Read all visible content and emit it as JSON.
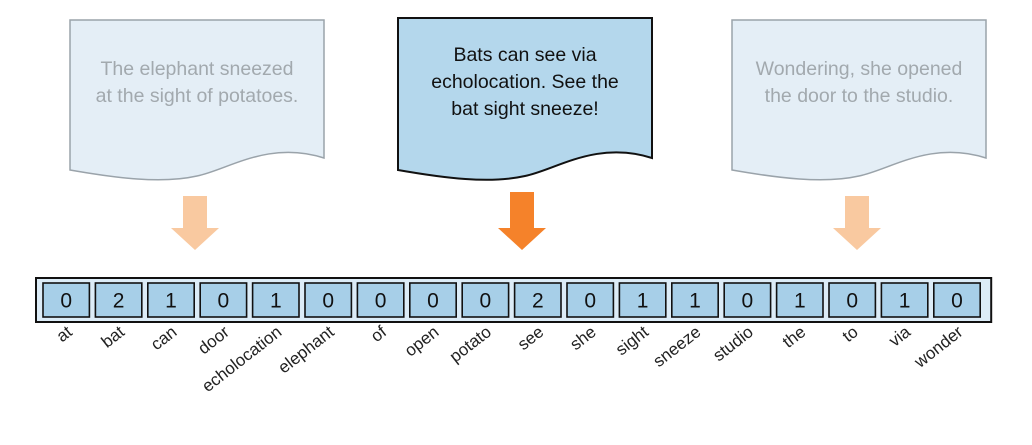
{
  "documents": [
    {
      "lines": [
        "The elephant sneezed",
        "at the sight of potatoes."
      ],
      "highlighted": false
    },
    {
      "lines": [
        "Bats can see via",
        "echolocation. See the",
        "bat sight sneeze!"
      ],
      "highlighted": true
    },
    {
      "lines": [
        "Wondering, she opened",
        "the door to the studio."
      ],
      "highlighted": false
    }
  ],
  "vector": {
    "values": [
      "0",
      "2",
      "1",
      "0",
      "1",
      "0",
      "0",
      "0",
      "0",
      "2",
      "0",
      "1",
      "1",
      "0",
      "1",
      "0",
      "1",
      "0"
    ],
    "vocabulary": [
      "at",
      "bat",
      "can",
      "door",
      "echolocation",
      "elephant",
      "of",
      "open",
      "potato",
      "see",
      "she",
      "sight",
      "sneeze",
      "studio",
      "the",
      "to",
      "via",
      "wonder"
    ]
  },
  "colors": {
    "doc_faded_fill": "#e4eef6",
    "doc_faded_stroke": "#9aa3aa",
    "doc_faded_text": "#a2a9ae",
    "doc_active_fill": "#b4d7ec",
    "doc_active_stroke": "#111111",
    "doc_active_text": "#111111",
    "arrow_faded": "#f9c9a0",
    "arrow_active": "#f5822a",
    "cell_fill": "#a7cfe8",
    "cell_stroke": "#111111",
    "frame_fill": "#dcecf7"
  }
}
